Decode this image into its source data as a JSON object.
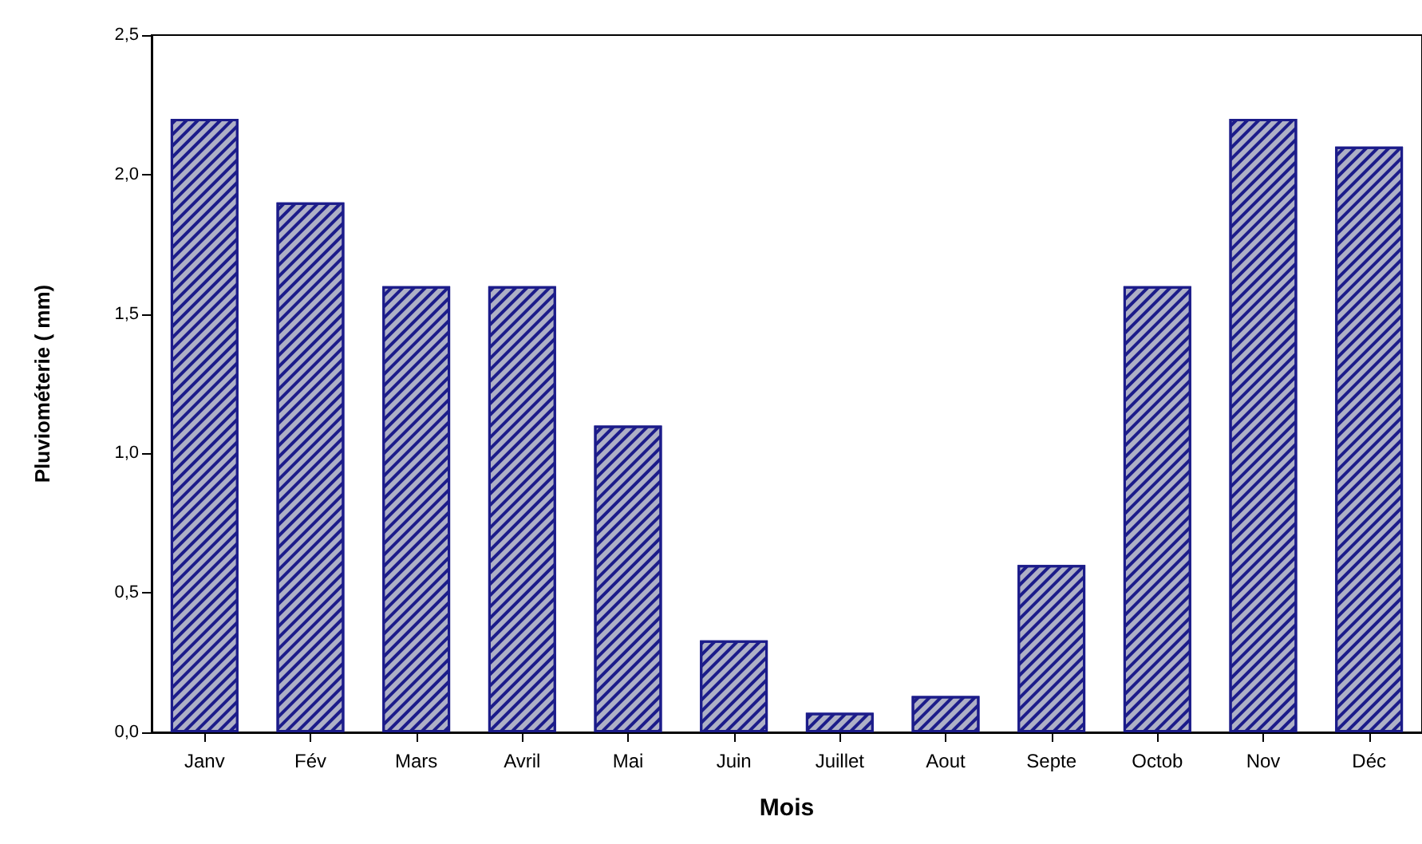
{
  "chart_data": {
    "type": "bar",
    "xlabel": "Mois",
    "ylabel": "Pluviométerie ( mm)",
    "categories": [
      "Janv",
      "Fév",
      "Mars",
      "Avril",
      "Mai",
      "Juin",
      "Juillet",
      "Aout",
      "Septe",
      "Octob",
      "Nov",
      "Déc"
    ],
    "values": [
      2.2,
      1.9,
      1.6,
      1.6,
      1.1,
      0.33,
      0.07,
      0.13,
      0.6,
      1.6,
      2.2,
      2.1
    ],
    "color": "#aeb0c6",
    "ylim": [
      0,
      2.5
    ],
    "yticks": [
      {
        "value": 0,
        "label": "0,0"
      },
      {
        "value": 0.5,
        "label": "0,5"
      },
      {
        "value": 1,
        "label": "1,0"
      },
      {
        "value": 1.5,
        "label": "1,5"
      },
      {
        "value": 2,
        "label": "2,0"
      },
      {
        "value": 2.5,
        "label": "2,5"
      }
    ],
    "grid": false
  }
}
